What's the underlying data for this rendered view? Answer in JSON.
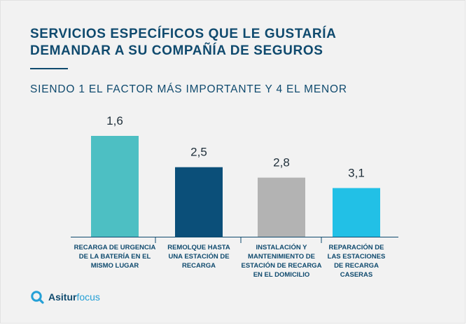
{
  "header": {
    "title_line1": "SERVICIOS ESPECÍFICOS QUE LE GUSTARÍA",
    "title_line2": "DEMANDAR A SU COMPAÑÍA DE SEGUROS",
    "subtitle": "SIENDO 1 EL FACTOR MÁS IMPORTANTE Y 4 EL MENOR"
  },
  "brand": {
    "part1": "Asitur",
    "part2": "focus"
  },
  "chart_data": {
    "type": "bar",
    "title": "SERVICIOS ESPECÍFICOS QUE LE GUSTARÍA DEMANDAR A SU COMPAÑÍA DE SEGUROS",
    "subtitle": "SIENDO 1 EL FACTOR MÁS IMPORTANTE Y 4 EL MENOR",
    "categories": [
      [
        "RECARGA DE URGENCIA",
        "DE LA BATERÍA EN EL",
        "MISMO LUGAR"
      ],
      [
        "REMOLQUE HASTA",
        "UNA ESTACIÓN DE",
        "RECARGA"
      ],
      [
        "INSTALACIÓN Y",
        "MANTENIMIENTO DE",
        "ESTACIÓN DE RECARGA",
        "EN EL DOMICILIO"
      ],
      [
        "REPARACIÓN DE",
        "LAS ESTACIONES",
        "DE RECARGA",
        "CASERAS"
      ]
    ],
    "values": [
      1.6,
      2.5,
      2.8,
      3.1
    ],
    "value_labels": [
      "1,6",
      "2,5",
      "2,8",
      "3,1"
    ],
    "colors": [
      "#4dbfc3",
      "#0b4f79",
      "#b3b3b3",
      "#22c0e6"
    ],
    "xlabel": "",
    "ylabel": "",
    "ylim": [
      0,
      3.6
    ],
    "grid": false,
    "legend": "none"
  }
}
